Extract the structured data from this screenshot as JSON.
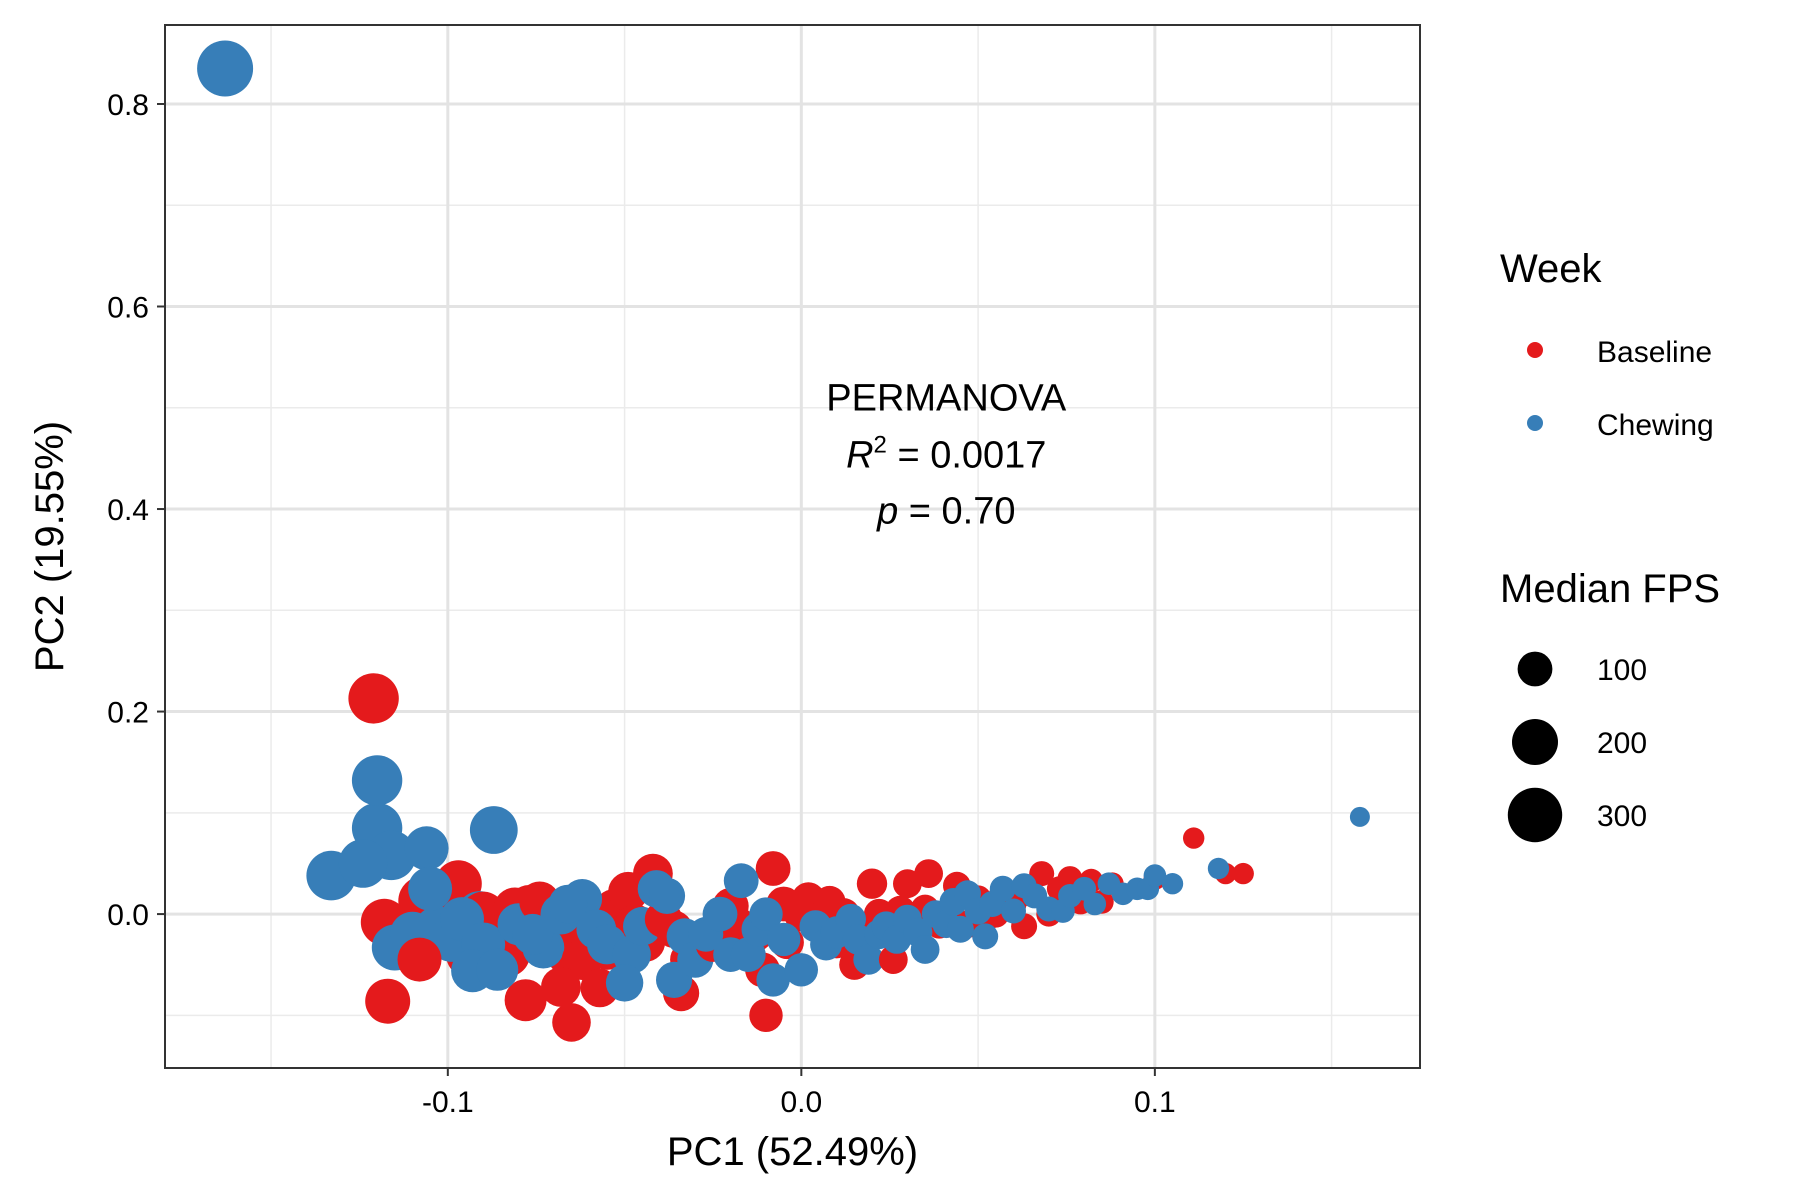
{
  "chart_data": {
    "type": "scatter",
    "xlabel": "PC1 (52.49%)",
    "ylabel": "PC2 (19.55%)",
    "xlim": [
      -0.18,
      0.175
    ],
    "ylim": [
      -0.152,
      0.878
    ],
    "x_ticks": [
      -0.1,
      0.0,
      0.1
    ],
    "x_tick_labels": [
      "-0.1",
      "0.0",
      "0.1"
    ],
    "y_ticks": [
      0.0,
      0.2,
      0.4,
      0.6,
      0.8
    ],
    "y_tick_labels": [
      "0.0",
      "0.2",
      "0.4",
      "0.6",
      "0.8"
    ],
    "grid": true,
    "annotation": {
      "line1": "PERMANOVA",
      "r2_symbol": "R",
      "r2_sup": "2",
      "r2_rest": " = 0.0017",
      "p_symbol": "p",
      "p_rest": " = 0.70",
      "x": 0.041,
      "y_center": 0.455
    },
    "legend": {
      "placement": "right",
      "color_title": "Week",
      "size_title": "Median FPS",
      "size_entries": [
        {
          "label": "100",
          "value": 100
        },
        {
          "label": "200",
          "value": 200
        },
        {
          "label": "300",
          "value": 300
        }
      ]
    },
    "series": [
      {
        "name": "Baseline",
        "color": "#E41A1C",
        "points": [
          [
            -0.121,
            0.213,
            250
          ],
          [
            -0.118,
            -0.008,
            210
          ],
          [
            -0.117,
            -0.086,
            190
          ],
          [
            -0.108,
            -0.045,
            180
          ],
          [
            -0.107,
            0.013,
            240
          ],
          [
            -0.104,
            -0.02,
            220
          ],
          [
            -0.1,
            0.01,
            200
          ],
          [
            -0.097,
            0.03,
            210
          ],
          [
            -0.095,
            -0.018,
            240
          ],
          [
            -0.094,
            -0.04,
            200
          ],
          [
            -0.09,
            0.0,
            190
          ],
          [
            -0.088,
            -0.022,
            220
          ],
          [
            -0.085,
            -0.012,
            190
          ],
          [
            -0.083,
            -0.04,
            180
          ],
          [
            -0.081,
            0.005,
            170
          ],
          [
            -0.078,
            -0.085,
            160
          ],
          [
            -0.077,
            0.008,
            160
          ],
          [
            -0.074,
            0.012,
            150
          ],
          [
            -0.072,
            -0.03,
            170
          ],
          [
            -0.07,
            0.002,
            170
          ],
          [
            -0.068,
            -0.072,
            140
          ],
          [
            -0.066,
            -0.04,
            160
          ],
          [
            -0.065,
            -0.107,
            130
          ],
          [
            -0.063,
            -0.006,
            190
          ],
          [
            -0.062,
            -0.045,
            150
          ],
          [
            -0.058,
            -0.01,
            150
          ],
          [
            -0.057,
            -0.073,
            130
          ],
          [
            -0.055,
            -0.035,
            150
          ],
          [
            -0.053,
            0.005,
            140
          ],
          [
            -0.05,
            -0.02,
            140
          ],
          [
            -0.049,
            0.022,
            140
          ],
          [
            -0.047,
            -0.01,
            140
          ],
          [
            -0.044,
            -0.028,
            130
          ],
          [
            -0.042,
            0.04,
            140
          ],
          [
            -0.039,
            -0.005,
            120
          ],
          [
            -0.036,
            -0.015,
            120
          ],
          [
            -0.034,
            -0.078,
            110
          ],
          [
            -0.032,
            -0.045,
            110
          ],
          [
            -0.03,
            -0.028,
            120
          ],
          [
            -0.025,
            -0.03,
            100
          ],
          [
            -0.02,
            0.008,
            110
          ],
          [
            -0.018,
            -0.01,
            100
          ],
          [
            -0.013,
            -0.02,
            100
          ],
          [
            -0.011,
            -0.055,
            100
          ],
          [
            -0.01,
            -0.1,
            90
          ],
          [
            -0.008,
            0.045,
            100
          ],
          [
            -0.005,
            0.01,
            100
          ],
          [
            -0.004,
            -0.028,
            90
          ],
          [
            0.0,
            0.0,
            100
          ],
          [
            0.002,
            0.015,
            90
          ],
          [
            0.005,
            -0.005,
            90
          ],
          [
            0.008,
            0.012,
            80
          ],
          [
            0.01,
            -0.028,
            80
          ],
          [
            0.012,
            0.0,
            80
          ],
          [
            0.015,
            -0.05,
            70
          ],
          [
            0.017,
            -0.018,
            70
          ],
          [
            0.02,
            0.03,
            70
          ],
          [
            0.022,
            0.0,
            70
          ],
          [
            0.025,
            -0.015,
            70
          ],
          [
            0.026,
            -0.045,
            60
          ],
          [
            0.028,
            0.003,
            70
          ],
          [
            0.03,
            0.03,
            60
          ],
          [
            0.033,
            -0.012,
            60
          ],
          [
            0.035,
            0.005,
            60
          ],
          [
            0.036,
            0.04,
            60
          ],
          [
            0.039,
            -0.01,
            60
          ],
          [
            0.042,
            0.0,
            55
          ],
          [
            0.044,
            0.028,
            55
          ],
          [
            0.047,
            -0.01,
            55
          ],
          [
            0.05,
            0.015,
            50
          ],
          [
            0.052,
            -0.005,
            50
          ],
          [
            0.055,
            0.0,
            50
          ],
          [
            0.057,
            0.02,
            50
          ],
          [
            0.06,
            0.01,
            45
          ],
          [
            0.063,
            -0.012,
            45
          ],
          [
            0.065,
            0.02,
            45
          ],
          [
            0.068,
            0.04,
            40
          ],
          [
            0.07,
            0.0,
            40
          ],
          [
            0.073,
            0.025,
            40
          ],
          [
            0.076,
            0.035,
            40
          ],
          [
            0.079,
            0.012,
            40
          ],
          [
            0.082,
            0.033,
            35
          ],
          [
            0.085,
            0.012,
            35
          ],
          [
            0.088,
            0.03,
            30
          ],
          [
            0.1,
            0.035,
            30
          ],
          [
            0.111,
            0.075,
            25
          ],
          [
            0.12,
            0.04,
            25
          ],
          [
            0.125,
            0.04,
            25
          ]
        ]
      },
      {
        "name": "Chewing",
        "color": "#377EB8",
        "points": [
          [
            -0.163,
            0.835,
            320
          ],
          [
            -0.133,
            0.038,
            240
          ],
          [
            -0.124,
            0.05,
            230
          ],
          [
            -0.12,
            0.085,
            250
          ],
          [
            -0.12,
            0.132,
            250
          ],
          [
            -0.116,
            0.058,
            240
          ],
          [
            -0.115,
            -0.033,
            200
          ],
          [
            -0.11,
            -0.02,
            190
          ],
          [
            -0.106,
            0.065,
            180
          ],
          [
            -0.105,
            0.025,
            180
          ],
          [
            -0.103,
            -0.015,
            200
          ],
          [
            -0.099,
            -0.025,
            190
          ],
          [
            -0.096,
            -0.005,
            180
          ],
          [
            -0.093,
            -0.056,
            170
          ],
          [
            -0.091,
            0.0,
            200
          ],
          [
            -0.09,
            -0.03,
            180
          ],
          [
            -0.087,
            0.083,
            220
          ],
          [
            -0.086,
            -0.055,
            160
          ],
          [
            -0.085,
            -0.012,
            210
          ],
          [
            -0.08,
            -0.01,
            160
          ],
          [
            -0.076,
            -0.02,
            150
          ],
          [
            -0.073,
            -0.033,
            160
          ],
          [
            -0.068,
            0.0,
            150
          ],
          [
            -0.066,
            0.01,
            130
          ],
          [
            -0.062,
            0.015,
            140
          ],
          [
            -0.058,
            -0.015,
            140
          ],
          [
            -0.055,
            -0.03,
            140
          ],
          [
            -0.05,
            -0.068,
            120
          ],
          [
            -0.048,
            -0.04,
            130
          ],
          [
            -0.045,
            -0.012,
            130
          ],
          [
            -0.041,
            0.025,
            120
          ],
          [
            -0.038,
            0.018,
            110
          ],
          [
            -0.036,
            -0.065,
            110
          ],
          [
            -0.033,
            -0.022,
            110
          ],
          [
            -0.03,
            -0.045,
            110
          ],
          [
            -0.027,
            -0.02,
            100
          ],
          [
            -0.023,
            0.0,
            100
          ],
          [
            -0.02,
            -0.04,
            100
          ],
          [
            -0.017,
            0.033,
            100
          ],
          [
            -0.015,
            -0.04,
            100
          ],
          [
            -0.012,
            -0.015,
            100
          ],
          [
            -0.01,
            0.0,
            90
          ],
          [
            -0.008,
            -0.065,
            90
          ],
          [
            -0.005,
            -0.025,
            90
          ],
          [
            0.0,
            -0.055,
            90
          ],
          [
            0.004,
            -0.012,
            80
          ],
          [
            0.007,
            -0.03,
            80
          ],
          [
            0.01,
            -0.018,
            80
          ],
          [
            0.014,
            -0.005,
            70
          ],
          [
            0.016,
            -0.025,
            70
          ],
          [
            0.019,
            -0.045,
            70
          ],
          [
            0.022,
            -0.02,
            65
          ],
          [
            0.024,
            -0.012,
            65
          ],
          [
            0.027,
            -0.025,
            60
          ],
          [
            0.03,
            -0.005,
            60
          ],
          [
            0.033,
            -0.018,
            60
          ],
          [
            0.035,
            -0.035,
            60
          ],
          [
            0.038,
            0.0,
            55
          ],
          [
            0.041,
            -0.01,
            55
          ],
          [
            0.043,
            0.012,
            55
          ],
          [
            0.045,
            -0.015,
            50
          ],
          [
            0.047,
            0.02,
            50
          ],
          [
            0.05,
            0.003,
            50
          ],
          [
            0.052,
            -0.022,
            45
          ],
          [
            0.054,
            0.01,
            45
          ],
          [
            0.057,
            0.025,
            45
          ],
          [
            0.06,
            0.003,
            40
          ],
          [
            0.063,
            0.028,
            40
          ],
          [
            0.066,
            0.018,
            40
          ],
          [
            0.07,
            0.005,
            40
          ],
          [
            0.074,
            0.003,
            35
          ],
          [
            0.076,
            0.018,
            35
          ],
          [
            0.08,
            0.025,
            35
          ],
          [
            0.083,
            0.01,
            30
          ],
          [
            0.087,
            0.03,
            30
          ],
          [
            0.091,
            0.02,
            30
          ],
          [
            0.095,
            0.025,
            30
          ],
          [
            0.098,
            0.025,
            30
          ],
          [
            0.1,
            0.038,
            30
          ],
          [
            0.105,
            0.03,
            25
          ],
          [
            0.118,
            0.045,
            25
          ],
          [
            0.158,
            0.096,
            20
          ]
        ]
      }
    ]
  }
}
